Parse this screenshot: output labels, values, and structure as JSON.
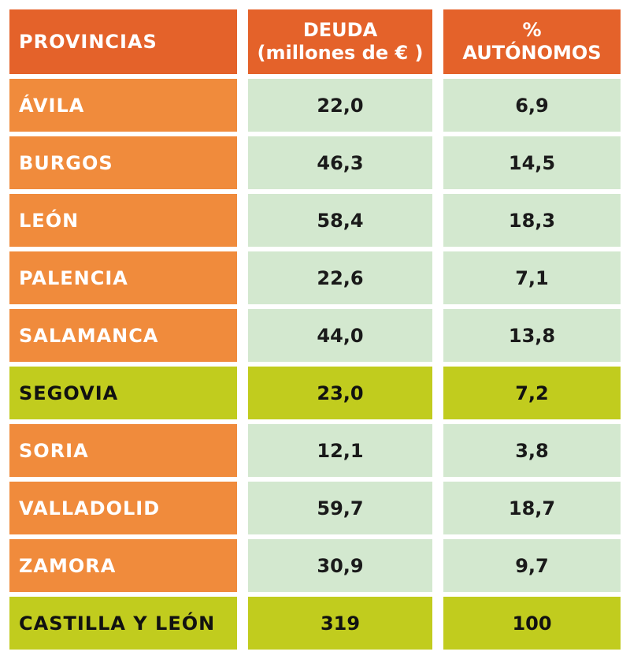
{
  "headers": {
    "provincias": "PROVINCIAS",
    "deuda_line1": "DEUDA",
    "deuda_line2": "(millones de € )",
    "autonomos_line1": "%",
    "autonomos_line2": "AUTÓNOMOS"
  },
  "rows": [
    {
      "provincia": "ÁVILA",
      "deuda": "22,0",
      "autonomos": "6,9",
      "highlight": false
    },
    {
      "provincia": "BURGOS",
      "deuda": "46,3",
      "autonomos": "14,5",
      "highlight": false
    },
    {
      "provincia": "LEÓN",
      "deuda": "58,4",
      "autonomos": "18,3",
      "highlight": false
    },
    {
      "provincia": "PALENCIA",
      "deuda": "22,6",
      "autonomos": "7,1",
      "highlight": false
    },
    {
      "provincia": "SALAMANCA",
      "deuda": "44,0",
      "autonomos": "13,8",
      "highlight": false
    },
    {
      "provincia": "SEGOVIA",
      "deuda": "23,0",
      "autonomos": "7,2",
      "highlight": true
    },
    {
      "provincia": "SORIA",
      "deuda": "12,1",
      "autonomos": "3,8",
      "highlight": false
    },
    {
      "provincia": "VALLADOLID",
      "deuda": "59,7",
      "autonomos": "18,7",
      "highlight": false
    },
    {
      "provincia": "ZAMORA",
      "deuda": "30,9",
      "autonomos": "9,7",
      "highlight": false
    },
    {
      "provincia": "CASTILLA Y LEÓN",
      "deuda": "319",
      "autonomos": "100",
      "highlight": true
    }
  ],
  "colors": {
    "header": "#e4622a",
    "province_cell": "#f08b3c",
    "value_cell": "#d3e8cf",
    "highlight": "#c1cc1e"
  }
}
